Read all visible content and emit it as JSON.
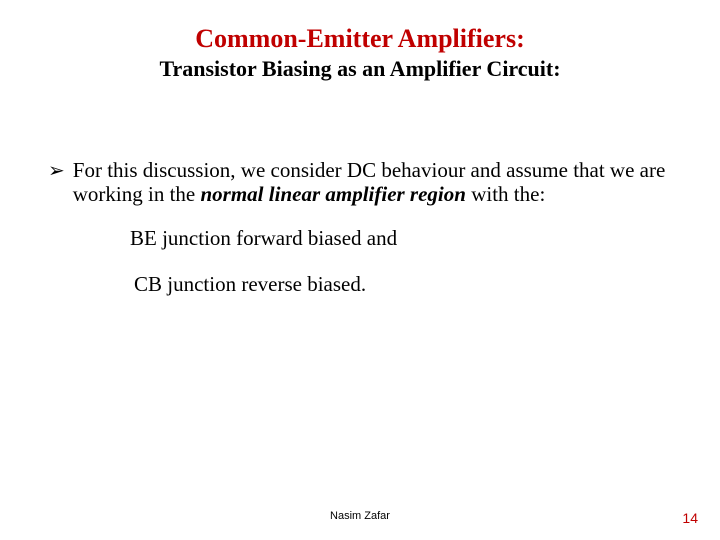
{
  "title": {
    "main": "Common-Emitter Amplifiers:",
    "sub": "Transistor Biasing as an Amplifier Circuit:"
  },
  "bullet": {
    "marker": "➢",
    "pre": "For this discussion, we consider DC behaviour and assume that we are working in the ",
    "emph": "normal linear amplifier region",
    "post": " with the:"
  },
  "sub1": "BE junction forward biased and",
  "sub2": "CB junction reverse biased.",
  "footer": {
    "author": "Nasim Zafar",
    "page": "14"
  },
  "colors": {
    "title_color": "#c00000",
    "text_color": "#000000",
    "page_color": "#c00000",
    "background": "#ffffff"
  }
}
